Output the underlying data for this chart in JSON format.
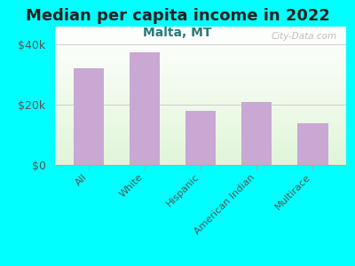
{
  "title": "Median per capita income in 2022",
  "subtitle": "Malta, MT",
  "categories": [
    "All",
    "White",
    "Hispanic",
    "American Indian",
    "Multirace"
  ],
  "values": [
    32000,
    37500,
    18000,
    21000,
    14000
  ],
  "bar_color": "#C9A8D4",
  "background_outer": "#00FFFF",
  "title_color": "#222222",
  "subtitle_color": "#2a7a7a",
  "axis_label_color": "#555555",
  "ytick_labels": [
    "$0",
    "$20k",
    "$40k"
  ],
  "ytick_values": [
    0,
    20000,
    40000
  ],
  "ylim": [
    0,
    46000
  ],
  "watermark": "City-Data.com",
  "title_fontsize": 13,
  "subtitle_fontsize": 10,
  "tick_label_fontsize": 9,
  "xtick_fontsize": 8
}
